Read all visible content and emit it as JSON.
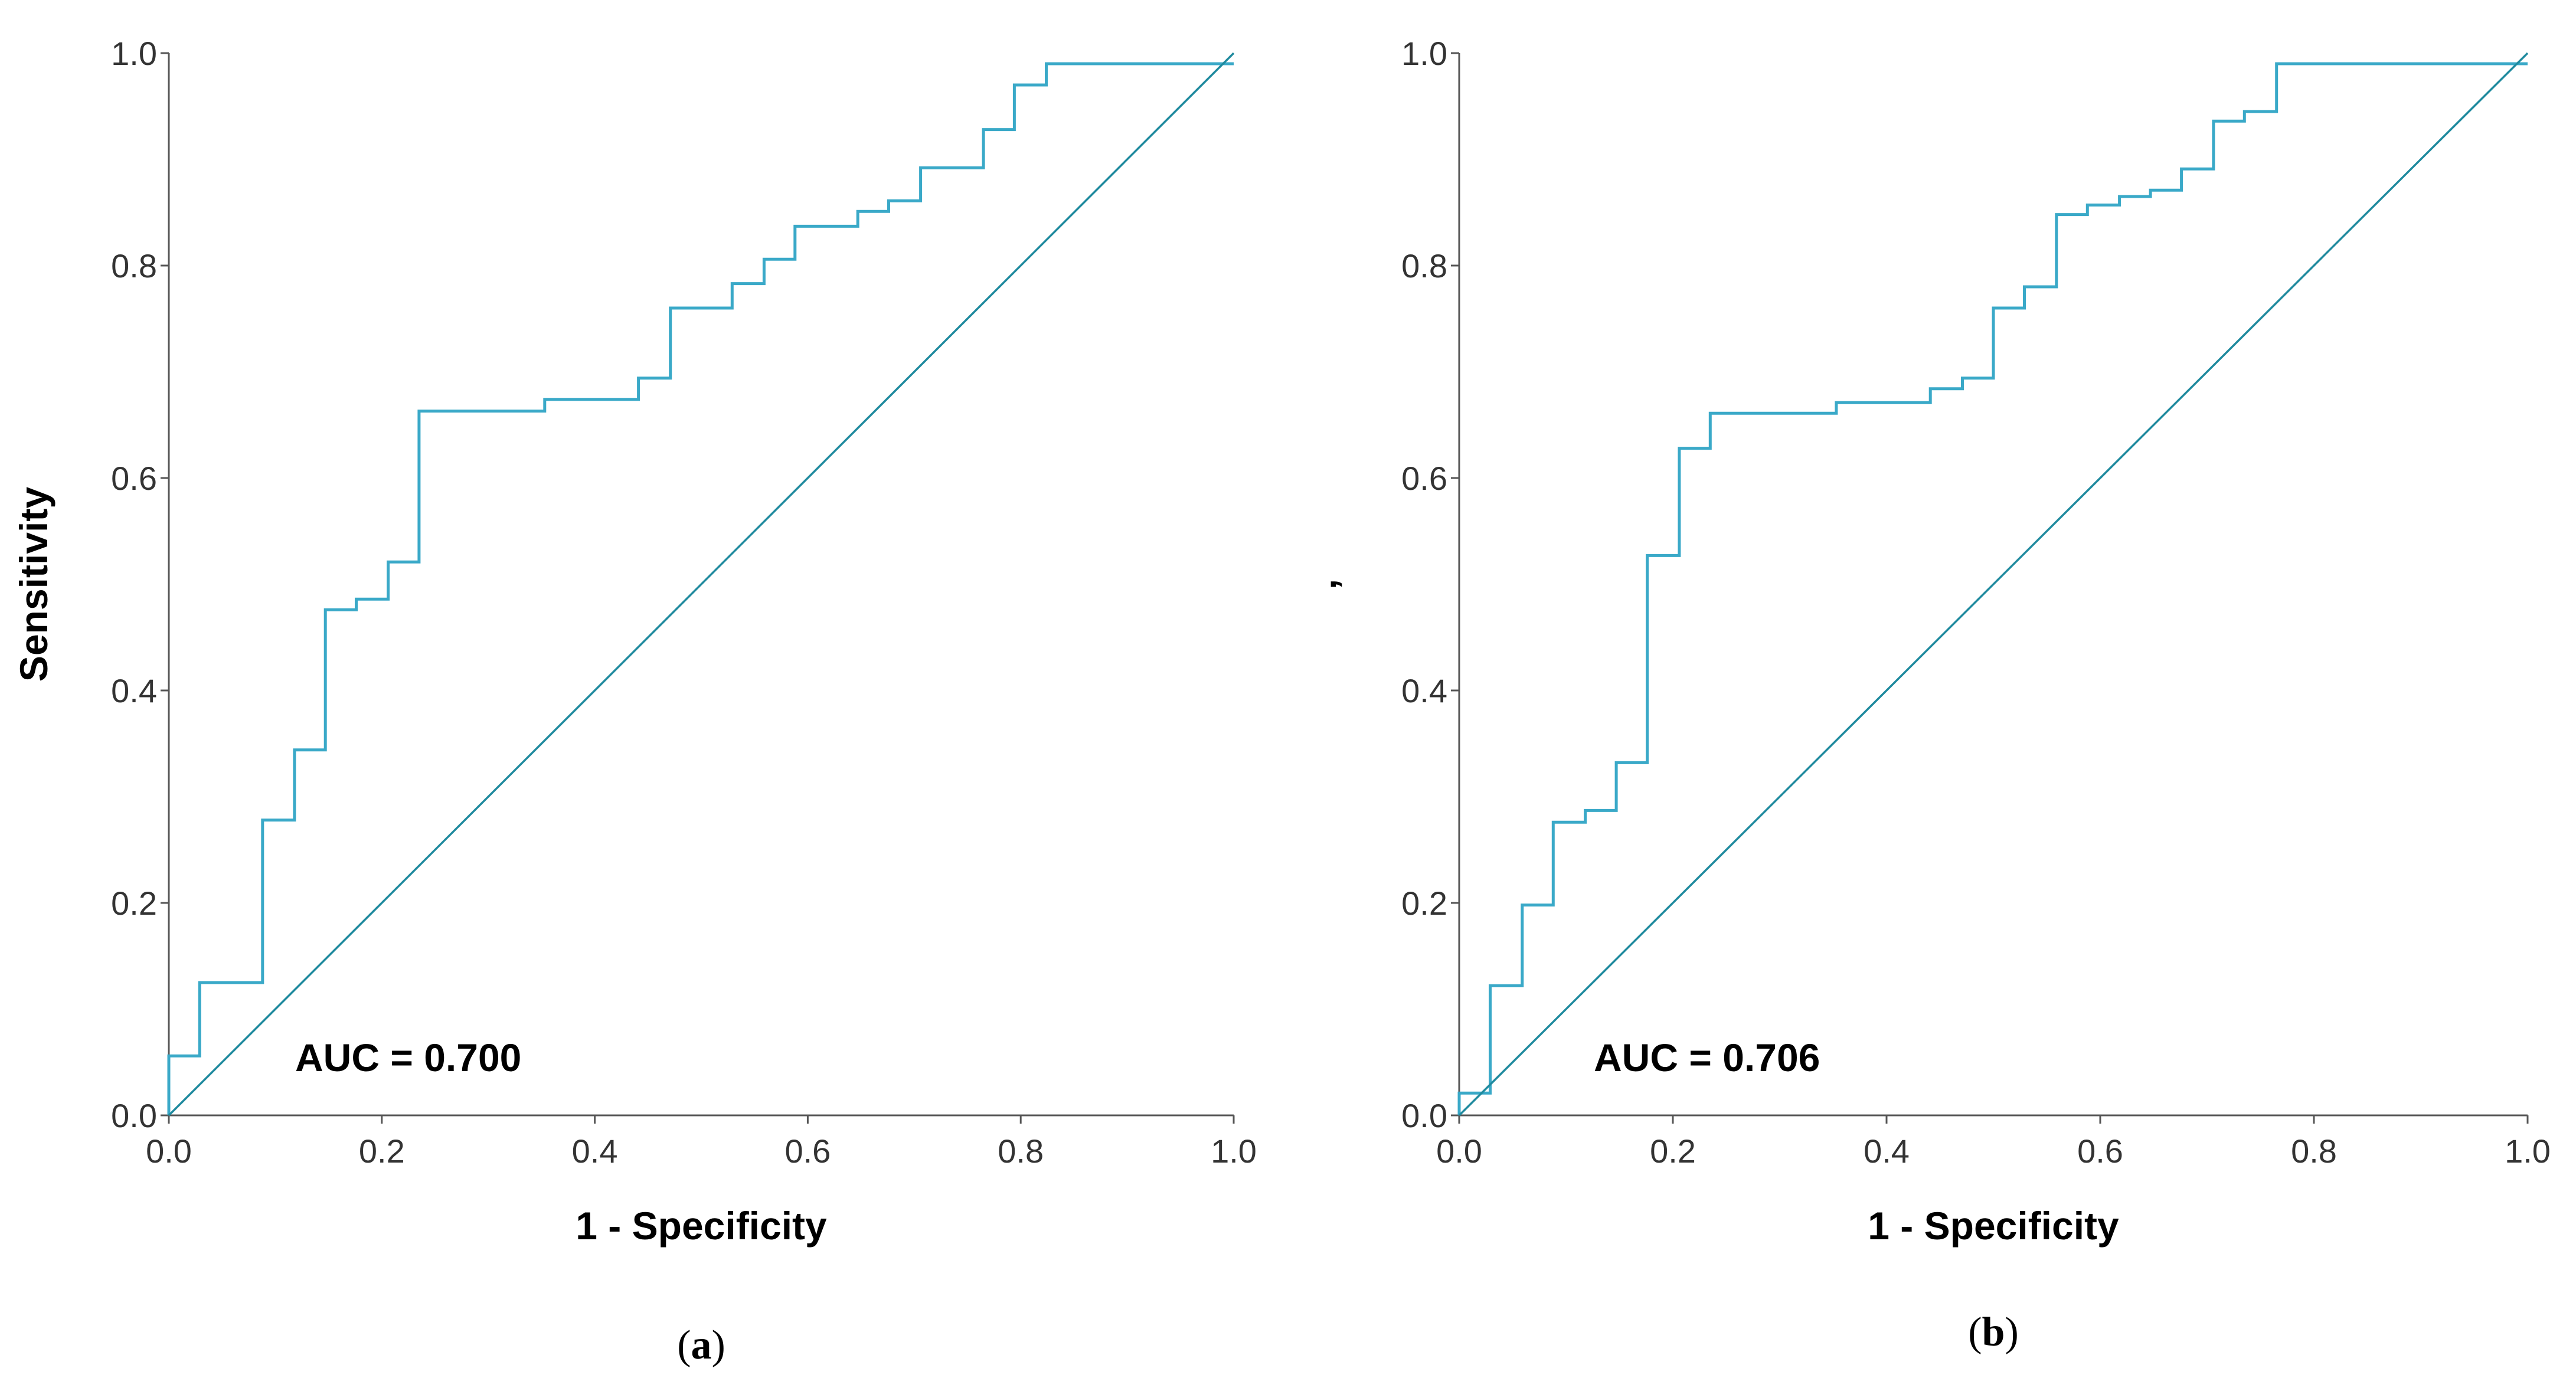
{
  "colors": {
    "roc": "#3aa9c8",
    "reference": "#1f8a9e",
    "axis": "#555555"
  },
  "chart_data": [
    {
      "type": "line",
      "panel_label": "a",
      "title": "",
      "xlabel": "1 - Specificity",
      "ylabel": "Sensitivity",
      "xlim": [
        0,
        1
      ],
      "ylim": [
        0,
        1
      ],
      "xticks": [
        "0.0",
        "0.2",
        "0.4",
        "0.6",
        "0.8",
        "1.0"
      ],
      "yticks": [
        "0.0",
        "0.2",
        "0.4",
        "0.6",
        "0.8",
        "1.0"
      ],
      "annotation": "AUC = 0.700",
      "grid": false,
      "series": [
        {
          "name": "ROC curve",
          "x": [
            0,
            0,
            0.029,
            0.029,
            0.088,
            0.088,
            0.118,
            0.118,
            0.147,
            0.147,
            0.176,
            0.176,
            0.206,
            0.206,
            0.235,
            0.235,
            0.353,
            0.353,
            0.441,
            0.441,
            0.471,
            0.471,
            0.529,
            0.529,
            0.559,
            0.559,
            0.588,
            0.588,
            0.647,
            0.647,
            0.676,
            0.676,
            0.706,
            0.706,
            0.765,
            0.765,
            0.794,
            0.794,
            0.824,
            0.824,
            1.0
          ],
          "y": [
            0,
            0.056,
            0.056,
            0.125,
            0.125,
            0.278,
            0.278,
            0.344,
            0.344,
            0.476,
            0.476,
            0.486,
            0.486,
            0.521,
            0.521,
            0.663,
            0.663,
            0.674,
            0.674,
            0.694,
            0.694,
            0.76,
            0.76,
            0.783,
            0.783,
            0.806,
            0.806,
            0.837,
            0.837,
            0.851,
            0.851,
            0.861,
            0.861,
            0.892,
            0.892,
            0.928,
            0.928,
            0.97,
            0.97,
            0.99,
            0.99
          ]
        },
        {
          "name": "Reference line",
          "x": [
            0,
            1
          ],
          "y": [
            0,
            1
          ]
        }
      ]
    },
    {
      "type": "line",
      "panel_label": "b",
      "title": "",
      "xlabel": "1 - Specificity",
      "ylabel": "’",
      "xlim": [
        0,
        1
      ],
      "ylim": [
        0,
        1
      ],
      "xticks": [
        "0.0",
        "0.2",
        "0.4",
        "0.6",
        "0.8",
        "1.0"
      ],
      "yticks": [
        "0.0",
        "0.2",
        "0.4",
        "0.6",
        "0.8",
        "1.0"
      ],
      "annotation": "AUC = 0.706",
      "grid": false,
      "series": [
        {
          "name": "ROC curve",
          "x": [
            0,
            0,
            0.029,
            0.029,
            0.059,
            0.059,
            0.088,
            0.088,
            0.118,
            0.118,
            0.147,
            0.147,
            0.176,
            0.176,
            0.206,
            0.206,
            0.235,
            0.235,
            0.353,
            0.353,
            0.441,
            0.441,
            0.471,
            0.471,
            0.5,
            0.5,
            0.529,
            0.529,
            0.559,
            0.559,
            0.588,
            0.588,
            0.618,
            0.618,
            0.647,
            0.647,
            0.676,
            0.676,
            0.706,
            0.706,
            0.735,
            0.735,
            0.765,
            0.765,
            0.794,
            0.794,
            1.0
          ],
          "y": [
            0,
            0.021,
            0.021,
            0.122,
            0.122,
            0.198,
            0.198,
            0.276,
            0.276,
            0.287,
            0.287,
            0.332,
            0.332,
            0.527,
            0.527,
            0.628,
            0.628,
            0.661,
            0.661,
            0.671,
            0.671,
            0.684,
            0.684,
            0.694,
            0.694,
            0.76,
            0.76,
            0.78,
            0.78,
            0.848,
            0.848,
            0.857,
            0.857,
            0.865,
            0.865,
            0.871,
            0.871,
            0.891,
            0.891,
            0.936,
            0.936,
            0.945,
            0.945,
            0.99,
            0.99,
            0.99,
            0.99
          ]
        },
        {
          "name": "Reference line",
          "x": [
            0,
            1
          ],
          "y": [
            0,
            1
          ]
        }
      ]
    }
  ]
}
